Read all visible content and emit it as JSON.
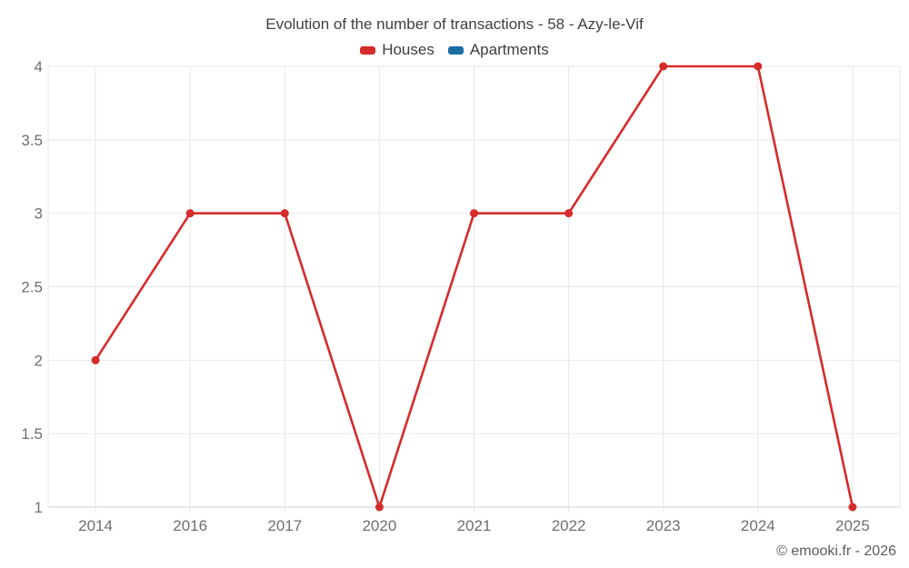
{
  "chart": {
    "title": "Evolution of the number of transactions - 58 - Azy-le-Vif"
  },
  "chart_data": {
    "type": "line",
    "title": "Evolution of the number of transactions - 58 - Azy-le-Vif",
    "categories": [
      "2014",
      "2016",
      "2017",
      "2020",
      "2021",
      "2022",
      "2023",
      "2024",
      "2025"
    ],
    "series": [
      {
        "name": "Houses",
        "color": "#d62b2b",
        "values": [
          2,
          3,
          3,
          1,
          3,
          3,
          4,
          4,
          1
        ]
      },
      {
        "name": "Apartments",
        "color": "#1a6fa3",
        "values": []
      }
    ],
    "xlabel": "",
    "ylabel": "",
    "ylim": [
      1,
      4
    ],
    "ytick_step": 0.5,
    "yticks": [
      "1",
      "1.5",
      "2",
      "2.5",
      "3",
      "3.5",
      "4"
    ],
    "grid": true,
    "legend_position": "top",
    "marker": "circle"
  },
  "colors": {
    "gridline": "#e8e8e8",
    "axis_line": "#d2d2d2",
    "tick_text": "#6f6f6f",
    "title_text": "#3f3f3f"
  },
  "footer": {
    "copyright": "© emooki.fr - 2026"
  }
}
